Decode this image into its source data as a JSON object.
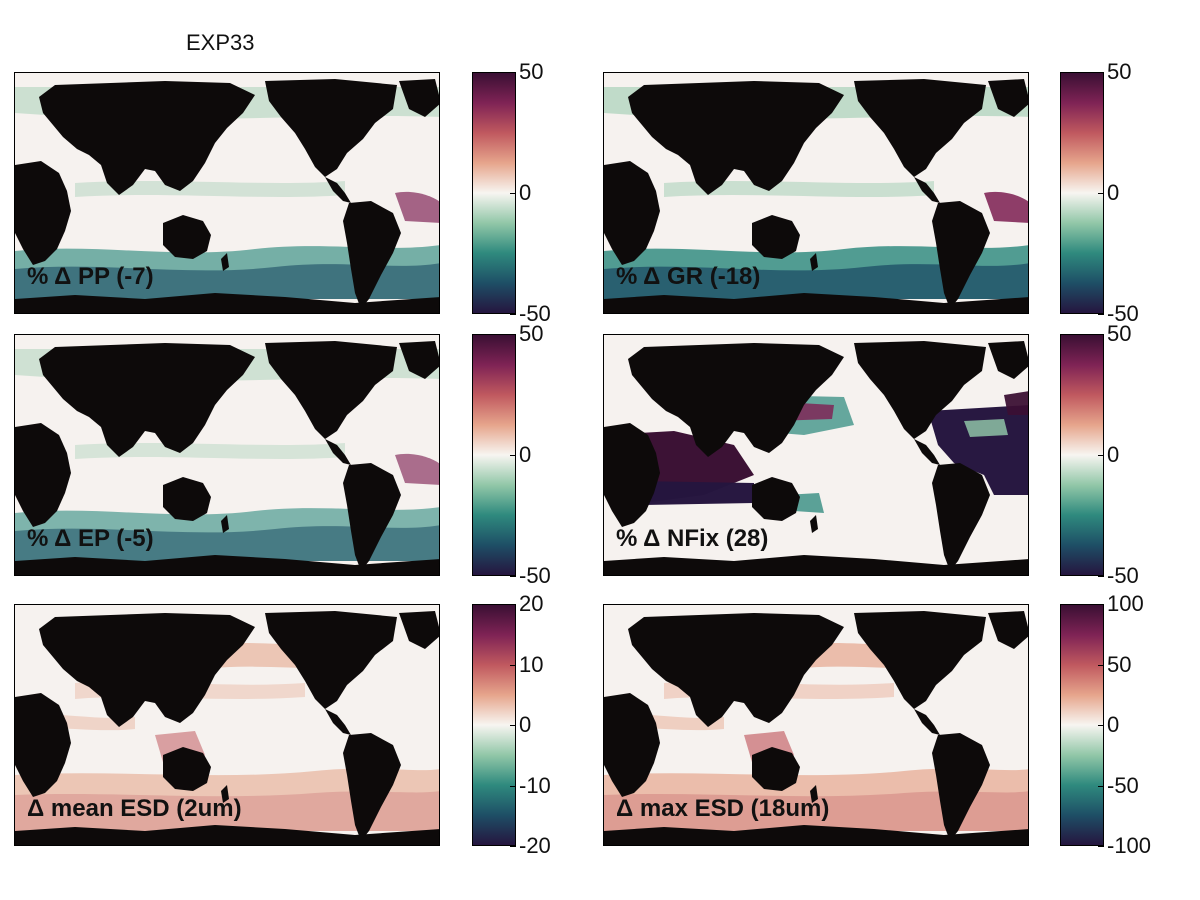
{
  "title": "EXP33",
  "colormap": {
    "stops": [
      "#25153f",
      "#1e4f66",
      "#2f8a7e",
      "#92c7a8",
      "#f7f5f1",
      "#e6a58c",
      "#c0595f",
      "#7f2355",
      "#3a0f33"
    ],
    "land": "#0d0a0a",
    "ocean_base": "#f6f2ef"
  },
  "panels": [
    {
      "id": "pp",
      "label": "% Δ PP (-7)",
      "ticks": [
        "50",
        "0",
        "-50"
      ],
      "tint": "green",
      "intensity": 0.45
    },
    {
      "id": "gr",
      "label": "% Δ GR (-18)",
      "ticks": [
        "50",
        "0",
        "-50"
      ],
      "tint": "green",
      "intensity": 0.8
    },
    {
      "id": "ep",
      "label": "% Δ EP (-5)",
      "ticks": [
        "50",
        "0",
        "-50"
      ],
      "tint": "green",
      "intensity": 0.35
    },
    {
      "id": "nfix",
      "label": "% Δ NFix (28)",
      "ticks": [
        "50",
        "0",
        "-50"
      ],
      "tint": "nfix",
      "intensity": 0.9
    },
    {
      "id": "mesd",
      "label": "Δ mean ESD (2um)",
      "ticks": [
        "20",
        "10",
        "0",
        "-10",
        "-20"
      ],
      "tint": "red",
      "intensity": 0.45
    },
    {
      "id": "xesd",
      "label": "Δ max ESD (18um)",
      "ticks": [
        "100",
        "50",
        "0",
        "-50",
        "-100"
      ],
      "tint": "red",
      "intensity": 0.7
    }
  ]
}
